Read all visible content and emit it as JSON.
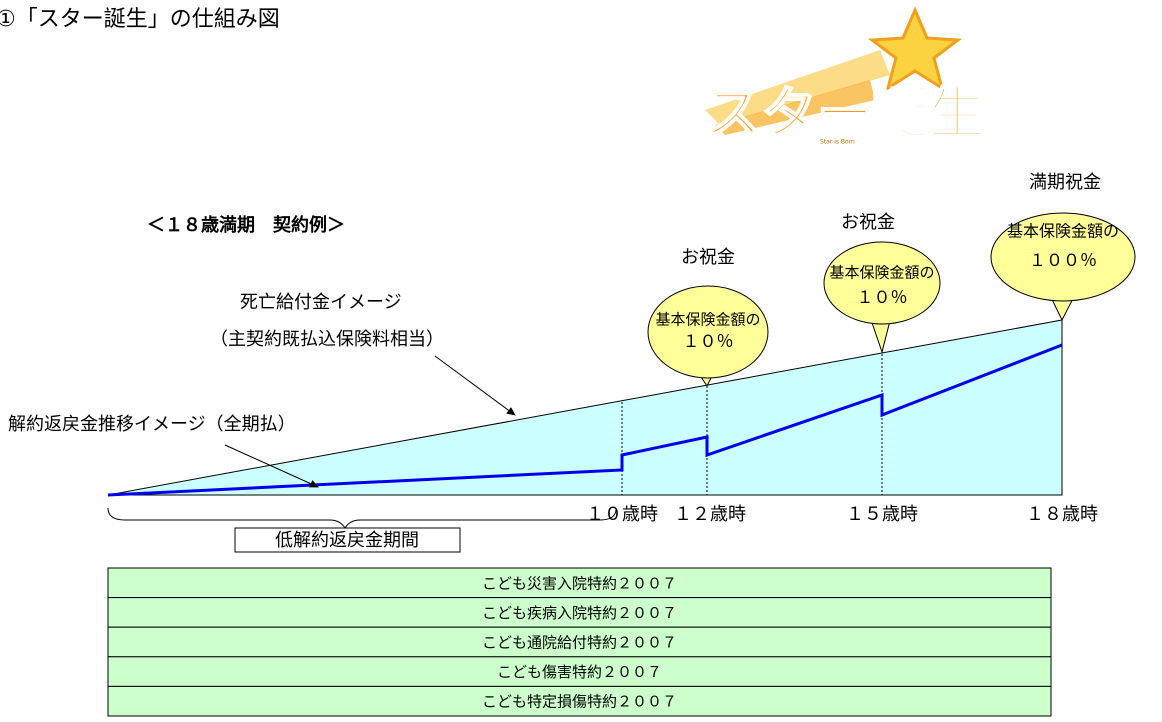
{
  "title": "①「スター誕生」の仕組み図",
  "logo": {
    "text": "スター誕生",
    "subtext": "Star is Born"
  },
  "example_label": "＜１８歳満期　契約例＞",
  "annotations": {
    "death_benefit": [
      "死亡給付金イメージ",
      "（主契約既払込保険料相当）"
    ],
    "surrender": "解約返戻金推移イメージ（全期払）",
    "low_period": "低解約返戻金期間"
  },
  "bubbles": [
    {
      "heading": "お祝金",
      "lines": [
        "基本保険金額の",
        "１０％"
      ]
    },
    {
      "heading": "お祝金",
      "lines": [
        "基本保険金額の",
        "１０％"
      ]
    },
    {
      "heading": "満期祝金",
      "lines": [
        "基本保険金額の",
        "１００％"
      ]
    }
  ],
  "age_labels": [
    "１０歳時",
    "１２歳時",
    "１５歳時",
    "１８歳時"
  ],
  "riders": [
    "こども災害入院特約２００７",
    "こども疾病入院特約２００７",
    "こども通院給付特約２００７",
    "こども傷害特約２００７",
    "こども特定損傷特約２００７"
  ]
}
